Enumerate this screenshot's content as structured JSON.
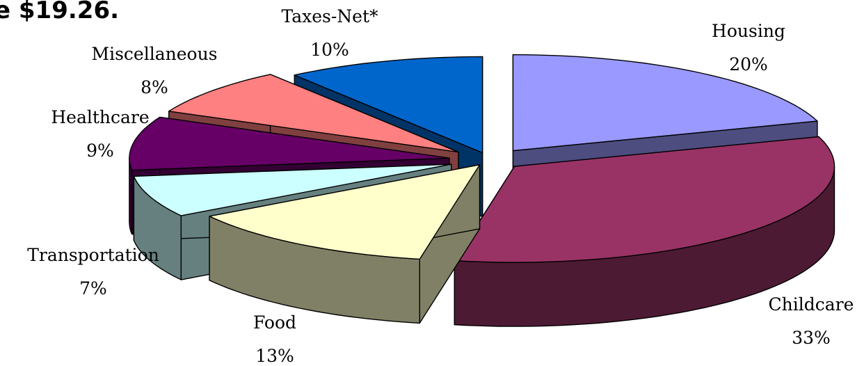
{
  "title_fragment": "e $19.26.",
  "chart_data": {
    "type": "pie",
    "three_d": true,
    "exploded": true,
    "start_angle_deg": -90,
    "direction": "clockwise",
    "slices": [
      {
        "name": "Housing",
        "value": 20,
        "label": "20%",
        "color": "#9999ff",
        "side_color": "#4d4d80"
      },
      {
        "name": "Childcare",
        "value": 33,
        "label": "33%",
        "color": "#993366",
        "side_color": "#4d1a33"
      },
      {
        "name": "Food",
        "value": 13,
        "label": "13%",
        "color": "#ffffcc",
        "side_color": "#808066"
      },
      {
        "name": "Transportation",
        "value": 7,
        "label": "7%",
        "color": "#ccffff",
        "side_color": "#668080"
      },
      {
        "name": "Healthcare",
        "value": 9,
        "label": "9%",
        "color": "#660066",
        "side_color": "#330033"
      },
      {
        "name": "Miscellaneous",
        "value": 8,
        "label": "8%",
        "color": "#ff8080",
        "side_color": "#804040"
      },
      {
        "name": "Taxes-Net*",
        "value": 10,
        "label": "10%",
        "color": "#0066cc",
        "side_color": "#003366"
      }
    ]
  }
}
